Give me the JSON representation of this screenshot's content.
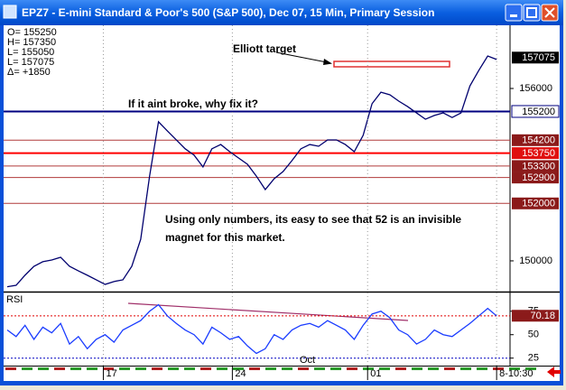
{
  "window": {
    "title": "EPZ7 - E-mini Standard & Poor's 500 (S&P 500), Dec 07, 15 Min, Primary Session"
  },
  "info": [
    "O= 155250",
    "H= 157350",
    "L= 155050",
    "L= 157075",
    "Δ=   +1850"
  ],
  "annotations": [
    "Elliott target",
    "If it aint broke, why fix it?",
    "Using only numbers, its easy to see that 52 is an invisible",
    "magnet for this market."
  ],
  "chart_data": [
    {
      "type": "line",
      "color": "#00006e",
      "values": [
        149100,
        149150,
        149500,
        149810,
        149970,
        150030,
        150125,
        149810,
        149650,
        149500,
        149340,
        149180,
        149280,
        149340,
        149810,
        150750,
        152950,
        154840,
        154520,
        154210,
        153900,
        153680,
        153270,
        153900,
        154050,
        153800,
        153580,
        153360,
        152950,
        152480,
        152860,
        153110,
        153490,
        153900,
        154050,
        153990,
        154210,
        154210,
        154050,
        153800,
        154370,
        155470,
        155870,
        155780,
        155560,
        155370,
        155150,
        154930,
        155060,
        155150,
        154990,
        155150,
        156090,
        156630,
        157130,
        157010
      ],
      "ylim": [
        148930,
        158200
      ],
      "yticks": [
        150000,
        156000
      ],
      "xlim": [
        0,
        56
      ],
      "xticks": [
        {
          "value": 10.8,
          "label": "17"
        },
        {
          "value": 25.3,
          "label": "24"
        },
        {
          "value": 40.5,
          "label": "01"
        },
        {
          "value": 55,
          "label": "8-10:30"
        }
      ],
      "levels": [
        {
          "value": 155200,
          "color": "#000080"
        },
        {
          "value": 154200,
          "color": "#b03a3a"
        },
        {
          "value": 153750,
          "color": "#ff0000"
        },
        {
          "value": 153300,
          "color": "#b03a3a"
        },
        {
          "value": 152900,
          "color": "#b03a3a"
        },
        {
          "value": 152000,
          "color": "#b03a3a"
        }
      ],
      "last": 157075
    },
    {
      "type": "line",
      "title": "RSI",
      "color": "#1a3cff",
      "values": [
        55,
        48,
        60,
        45,
        58,
        52,
        62,
        40,
        48,
        35,
        45,
        50,
        42,
        55,
        60,
        65,
        75,
        82,
        70,
        62,
        55,
        50,
        40,
        58,
        52,
        45,
        48,
        38,
        30,
        35,
        50,
        45,
        55,
        60,
        62,
        58,
        65,
        60,
        55,
        45,
        60,
        72,
        75,
        68,
        55,
        50,
        40,
        45,
        55,
        50,
        48,
        55,
        62,
        70,
        78,
        70
      ],
      "ylim": [
        17,
        94
      ],
      "yticks": [
        25,
        50,
        75
      ],
      "xlim": [
        0,
        56
      ],
      "levels": [
        {
          "value": 70,
          "color": "#e00000"
        },
        {
          "value": 25,
          "color": "#0000c0"
        }
      ],
      "month_label": "Oct",
      "last": 70.18
    }
  ]
}
